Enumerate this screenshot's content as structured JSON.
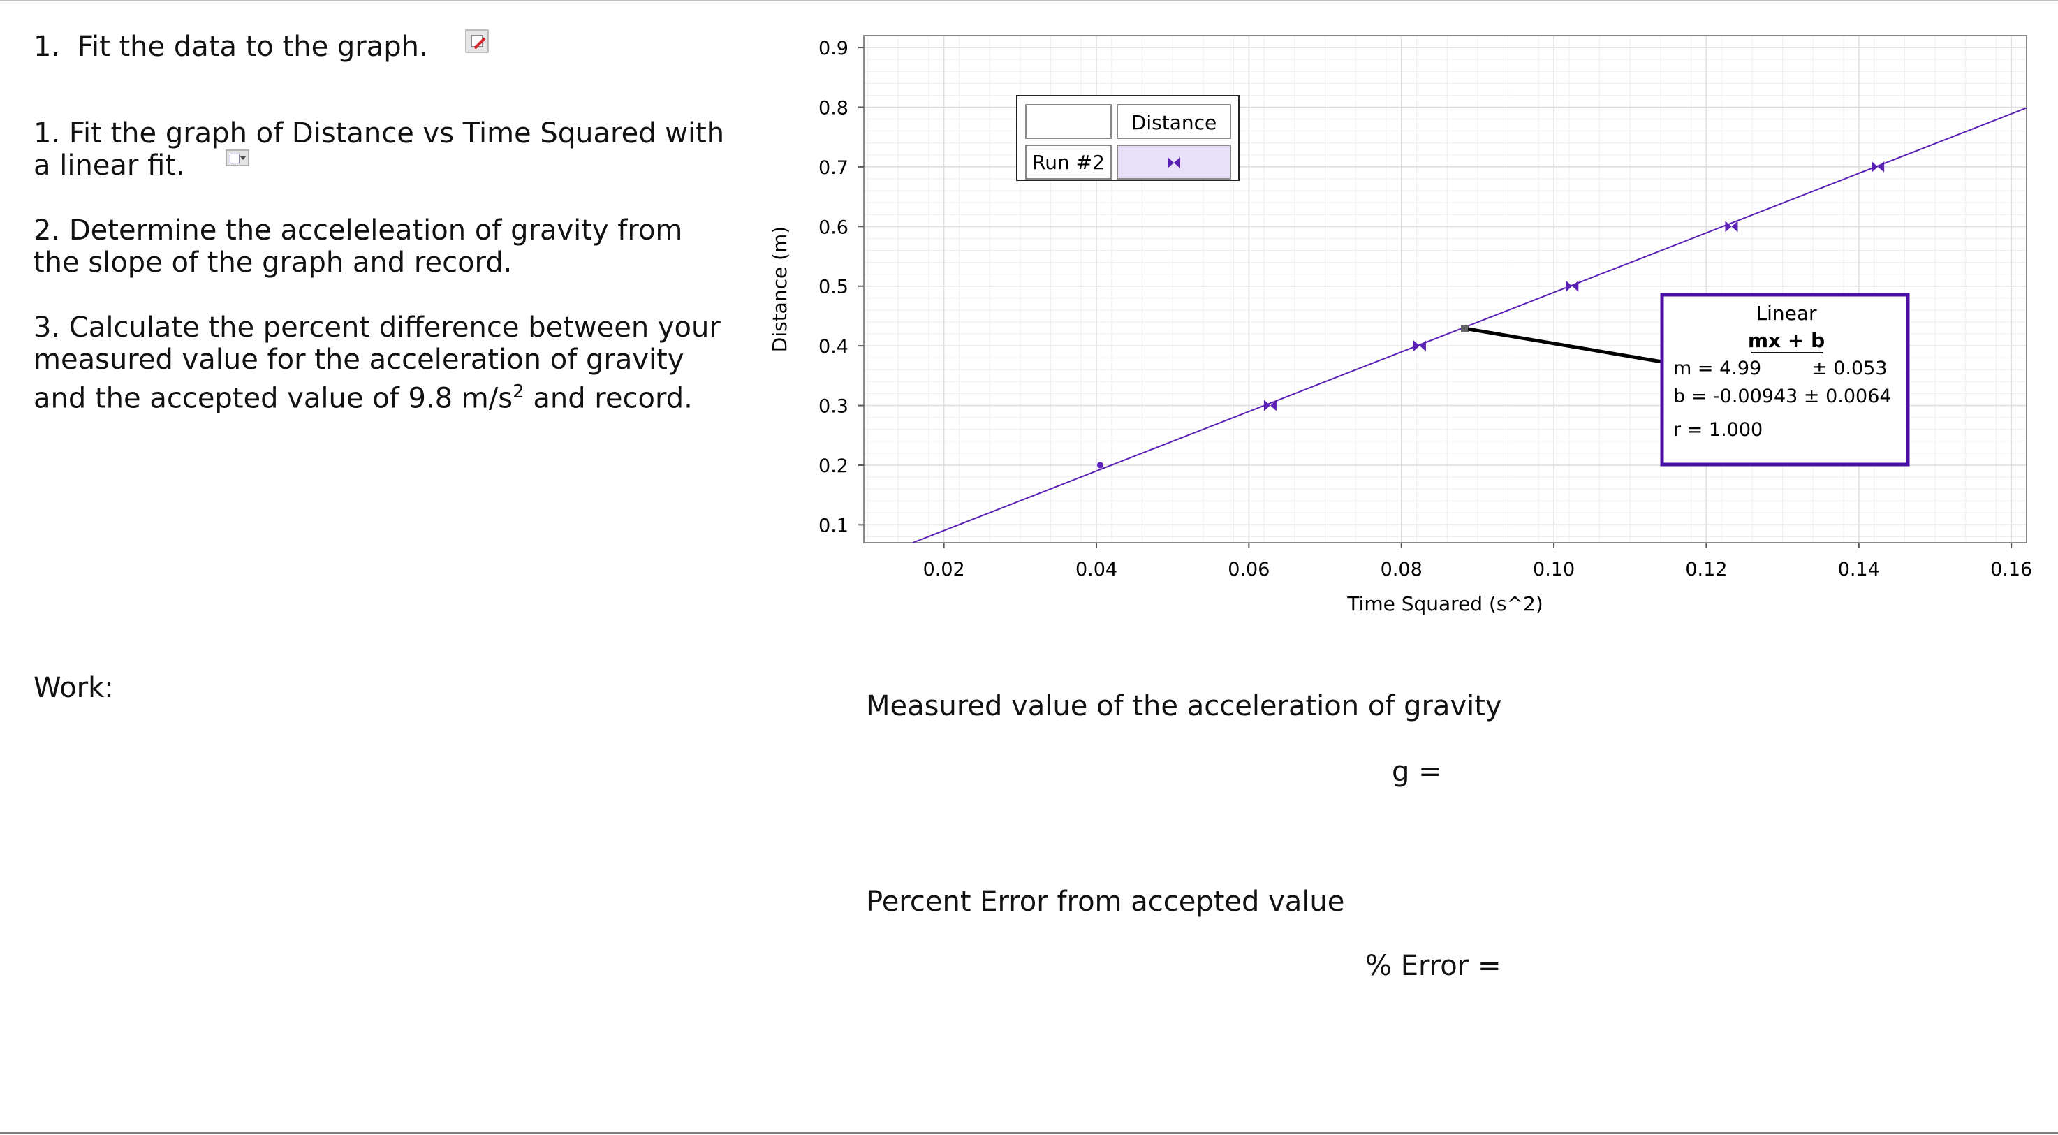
{
  "heading": {
    "number": "1.",
    "text": "Fit the data to the graph."
  },
  "instructions": {
    "step1": "1. Fit the graph of Distance vs Time Squared with a linear fit.",
    "step2": "2.  Determine the acceleleation of gravity from the slope of the graph and record.",
    "step3_before": "3.  Calculate the percent difference between your measured value for the acceleration of gravity and the accepted value of 9.8 m/s",
    "step3_sup": "2",
    "step3_after": " and record."
  },
  "work_label": "Work:",
  "graph": {
    "legend": {
      "column_header": "Distance",
      "row_label": "Run #2"
    },
    "fit_box": {
      "title": "Linear",
      "equation": "mx + b",
      "m_line": "m = 4.99",
      "m_err": "± 0.053",
      "b_line": "b  = -0.00943 ± 0.0064",
      "r_line": "r = 1.000"
    },
    "colors": {
      "series": "#5b20b6",
      "fit_box_border": "#4b0fa8",
      "grid": "#dcdcdc"
    }
  },
  "chart_data": {
    "type": "scatter",
    "xlabel": "Time Squared (s^2)",
    "ylabel": "Distance (m)",
    "xlim": [
      0.0095,
      0.162
    ],
    "ylim": [
      0.07,
      0.92
    ],
    "xticks": [
      "0.02",
      "0.04",
      "0.06",
      "0.08",
      "0.10",
      "0.12",
      "0.14",
      "0.16"
    ],
    "yticks": [
      "0.1",
      "0.2",
      "0.3",
      "0.4",
      "0.5",
      "0.6",
      "0.7",
      "0.8",
      "0.9"
    ],
    "grid": true,
    "legend_position": "top-left",
    "series": [
      {
        "name": "Run #2",
        "x": [
          0.0405,
          0.0628,
          0.0824,
          0.1024,
          0.1233,
          0.1425
        ],
        "y": [
          0.2,
          0.3,
          0.4,
          0.5,
          0.6,
          0.7
        ]
      }
    ],
    "fit": {
      "type": "linear",
      "m": 4.99,
      "b": -0.00943,
      "r": 1.0
    }
  },
  "results": {
    "measured_label": "Measured value of the acceleration of gravity",
    "g_label": "g =",
    "percent_label": "Percent Error from accepted value",
    "error_label": "% Error ="
  }
}
